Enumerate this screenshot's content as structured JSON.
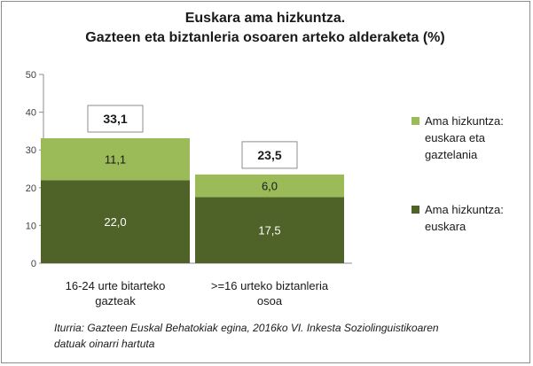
{
  "chart_data": {
    "type": "bar",
    "stacked": true,
    "title": [
      "Euskara ama hizkuntza.",
      "Gazteen eta biztanleria osoaren arteko alderaketa (%)"
    ],
    "categories": [
      [
        "16-24 urte bitarteko",
        "gazteak"
      ],
      [
        ">=16 urteko biztanleria",
        "osoa"
      ]
    ],
    "series": [
      {
        "name": [
          "Ama hizkuntza:",
          "euskara"
        ],
        "values": [
          22.0,
          17.5
        ],
        "labels": [
          "22,0",
          "17,5"
        ],
        "color": "#4f6228"
      },
      {
        "name": [
          "Ama hizkuntza:",
          "euskara eta",
          "gaztelania"
        ],
        "values": [
          11.1,
          6.0
        ],
        "labels": [
          "11,1",
          "6,0"
        ],
        "color": "#9bbb59"
      }
    ],
    "totals": [
      33.1,
      23.5
    ],
    "total_labels": [
      "33,1",
      "23,5"
    ],
    "yticks": [
      "0",
      "10",
      "20",
      "30",
      "40",
      "50"
    ],
    "ylim": [
      0,
      50
    ],
    "grid": false,
    "legend": "right",
    "source": [
      "Iturria: Gazteen Euskal Behatokiak egina, 2016ko VI. Inkesta Soziolinguistikoaren",
      "datuak oinarri hartuta"
    ]
  }
}
